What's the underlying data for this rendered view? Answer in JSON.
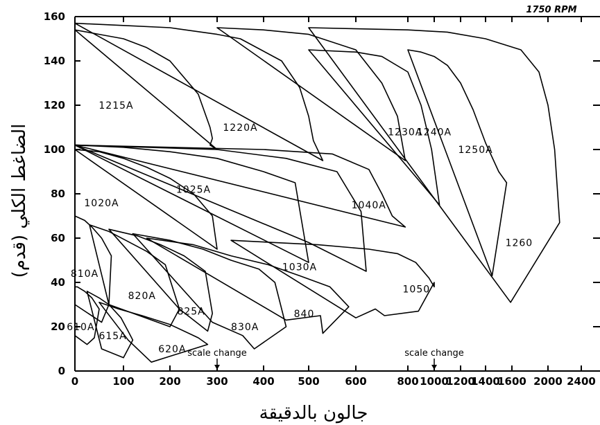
{
  "chart_data": {
    "type": "line",
    "subtitle": "1750 RPM",
    "xlabel": "جالون بالدقيقة",
    "ylabel": "الضاغط الكلي (قدم)",
    "ylim": [
      0,
      160
    ],
    "y_ticks": [
      "0",
      "20",
      "40",
      "60",
      "80",
      "100",
      "120",
      "140",
      "160"
    ],
    "x_ticks": [
      "0",
      "100",
      "200",
      "300",
      "400",
      "500",
      "600",
      "800",
      "1000",
      "1200",
      "1400",
      "1600",
      "2000",
      "2400"
    ],
    "grid": false,
    "annotations": [
      {
        "text": "scale change",
        "x": 300
      },
      {
        "text": "scale change",
        "x": 1000
      }
    ],
    "series": [
      {
        "name": "610A",
        "x": [
          0,
          5,
          20,
          35,
          50,
          40,
          25,
          0
        ],
        "y": [
          38,
          38,
          36,
          33,
          28,
          15,
          12,
          16
        ]
      },
      {
        "name": "615A",
        "x": [
          25,
          50,
          70,
          95,
          110,
          120,
          100,
          55
        ],
        "y": [
          36,
          33,
          30,
          24,
          18,
          14,
          6,
          10
        ]
      },
      {
        "name": "620A",
        "x": [
          50,
          90,
          140,
          200,
          260,
          280,
          160,
          110
        ],
        "y": [
          31,
          28,
          25,
          21,
          15,
          12,
          4,
          14
        ]
      },
      {
        "name": "810A",
        "x": [
          0,
          20,
          35,
          55,
          75,
          70,
          55,
          0
        ],
        "y": [
          70,
          68,
          65,
          60,
          52,
          30,
          22,
          30
        ]
      },
      {
        "name": "820A",
        "x": [
          30,
          70,
          105,
          150,
          190,
          220,
          200,
          70
        ],
        "y": [
          66,
          63,
          59,
          54,
          48,
          28,
          20,
          30
        ]
      },
      {
        "name": "825A",
        "x": [
          70,
          130,
          180,
          230,
          275,
          290,
          280,
          220
        ],
        "y": [
          64,
          61,
          57,
          52,
          45,
          26,
          18,
          28
        ]
      },
      {
        "name": "830A",
        "x": [
          120,
          200,
          270,
          330,
          390,
          425,
          450,
          380,
          355,
          290
        ],
        "y": [
          62,
          59,
          55,
          50,
          46,
          40,
          20,
          10,
          16,
          22
        ]
      },
      {
        "name": "840A",
        "x": [
          150,
          250,
          330,
          410,
          480,
          545,
          585,
          530,
          525,
          450
        ],
        "y": [
          60,
          57,
          52,
          48,
          43,
          38,
          29,
          17,
          25,
          23
        ]
      },
      {
        "name": "1050",
        "x": [
          330,
          520,
          650,
          760,
          860,
          960,
          1000,
          1000,
          880,
          710,
          675,
          600
        ],
        "y": [
          59,
          57,
          55,
          53,
          49,
          42,
          38,
          40,
          27,
          25,
          28,
          24
        ]
      },
      {
        "name": "1020A",
        "x": [
          0,
          50,
          100,
          150,
          200,
          250,
          290,
          300
        ],
        "y": [
          100,
          99,
          96,
          92,
          87,
          80,
          70,
          55
        ]
      },
      {
        "name": "1025A",
        "x": [
          0,
          100,
          200,
          300,
          400,
          470,
          500
        ],
        "y": [
          102,
          101,
          99,
          96,
          90,
          85,
          49
        ]
      },
      {
        "name": "1030A",
        "x": [
          0,
          150,
          300,
          450,
          560,
          620,
          640,
          500
        ],
        "y": [
          102,
          101,
          100,
          96,
          90,
          72,
          45,
          58
        ]
      },
      {
        "name": "1040A",
        "x": [
          0,
          200,
          400,
          550,
          650,
          700,
          740,
          790
        ],
        "y": [
          102,
          101,
          100,
          98,
          91,
          80,
          70,
          65
        ]
      },
      {
        "name": "1215A",
        "x": [
          0,
          50,
          100,
          150,
          200,
          260,
          285,
          290,
          285,
          300
        ],
        "y": [
          154,
          152,
          150,
          146,
          140,
          125,
          110,
          105,
          102,
          100
        ]
      },
      {
        "name": "1220A",
        "x": [
          0,
          100,
          200,
          300,
          350,
          440,
          480,
          500,
          510,
          530
        ],
        "y": [
          157,
          156,
          155,
          152,
          150,
          140,
          128,
          115,
          104,
          95
        ]
      },
      {
        "name": "1230A",
        "x": [
          300,
          400,
          500,
          600,
          700,
          760,
          790
        ],
        "y": [
          155,
          154,
          152,
          145,
          130,
          115,
          95
        ]
      },
      {
        "name": "1240A",
        "x": [
          500,
          600,
          700,
          800,
          900,
          980,
          1040
        ],
        "y": [
          145,
          144,
          142,
          135,
          120,
          100,
          75
        ]
      },
      {
        "name": "1250A",
        "x": [
          800,
          900,
          1000,
          1100,
          1200,
          1300,
          1400,
          1500,
          1560,
          1450
        ],
        "y": [
          145,
          144,
          142,
          138,
          130,
          118,
          103,
          90,
          85,
          43
        ]
      },
      {
        "name": "1260",
        "x": [
          500,
          800,
          1100,
          1400,
          1700,
          1900,
          2000,
          2080,
          2140,
          1590
        ],
        "y": [
          155,
          154,
          153,
          150,
          145,
          135,
          120,
          100,
          67,
          31
        ]
      }
    ],
    "zone_labels": [
      {
        "text": "610A",
        "x": 12,
        "y": 20
      },
      {
        "text": "615A",
        "x": 78,
        "y": 16
      },
      {
        "text": "620A",
        "x": 205,
        "y": 10
      },
      {
        "text": "810A",
        "x": 20,
        "y": 44
      },
      {
        "text": "820A",
        "x": 140,
        "y": 34
      },
      {
        "text": "825A",
        "x": 245,
        "y": 27
      },
      {
        "text": "830A",
        "x": 360,
        "y": 20
      },
      {
        "text": "840",
        "x": 490,
        "y": 26
      },
      {
        "text": "1050",
        "x": 865,
        "y": 37
      },
      {
        "text": "1020A",
        "x": 55,
        "y": 76
      },
      {
        "text": "1025A",
        "x": 250,
        "y": 82
      },
      {
        "text": "1030A",
        "x": 480,
        "y": 47
      },
      {
        "text": "1040A",
        "x": 650,
        "y": 75
      },
      {
        "text": "1215A",
        "x": 85,
        "y": 120
      },
      {
        "text": "1220A",
        "x": 350,
        "y": 110
      },
      {
        "text": "1230A",
        "x": 790,
        "y": 108
      },
      {
        "text": "1240A",
        "x": 1000,
        "y": 108
      },
      {
        "text": "1250A",
        "x": 1320,
        "y": 100
      },
      {
        "text": "1260",
        "x": 1680,
        "y": 58
      }
    ]
  }
}
